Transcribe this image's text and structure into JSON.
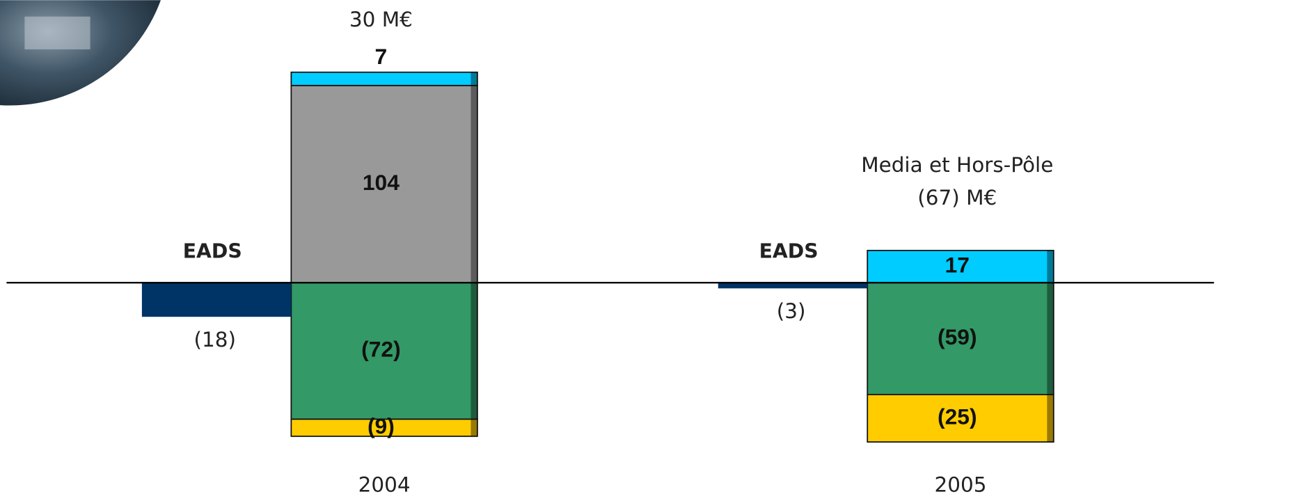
{
  "chart_data": {
    "type": "stacked-bar",
    "categories": [
      "2004",
      "2005"
    ],
    "annotations": [
      [
        "30 M€"
      ],
      [
        "Media et Hors-Pôle",
        "(67) M€"
      ]
    ],
    "reference": {
      "name": "EADS",
      "color": "#003366",
      "values": [
        -18,
        -3
      ],
      "value_labels": [
        "(18)",
        "(3)"
      ]
    },
    "series": [
      {
        "color": "#999999",
        "values": [
          104,
          null
        ]
      },
      {
        "color": "#00ccff",
        "values": [
          7,
          17
        ]
      },
      {
        "color": "#339966",
        "values": [
          -72,
          -59
        ],
        "value_labels": [
          "(72)",
          "(59)"
        ]
      },
      {
        "color": "#ffcc00",
        "values": [
          -9,
          -25
        ],
        "value_labels": [
          "(9)",
          "(25)"
        ]
      }
    ],
    "ylim": [
      -114,
      149
    ]
  }
}
